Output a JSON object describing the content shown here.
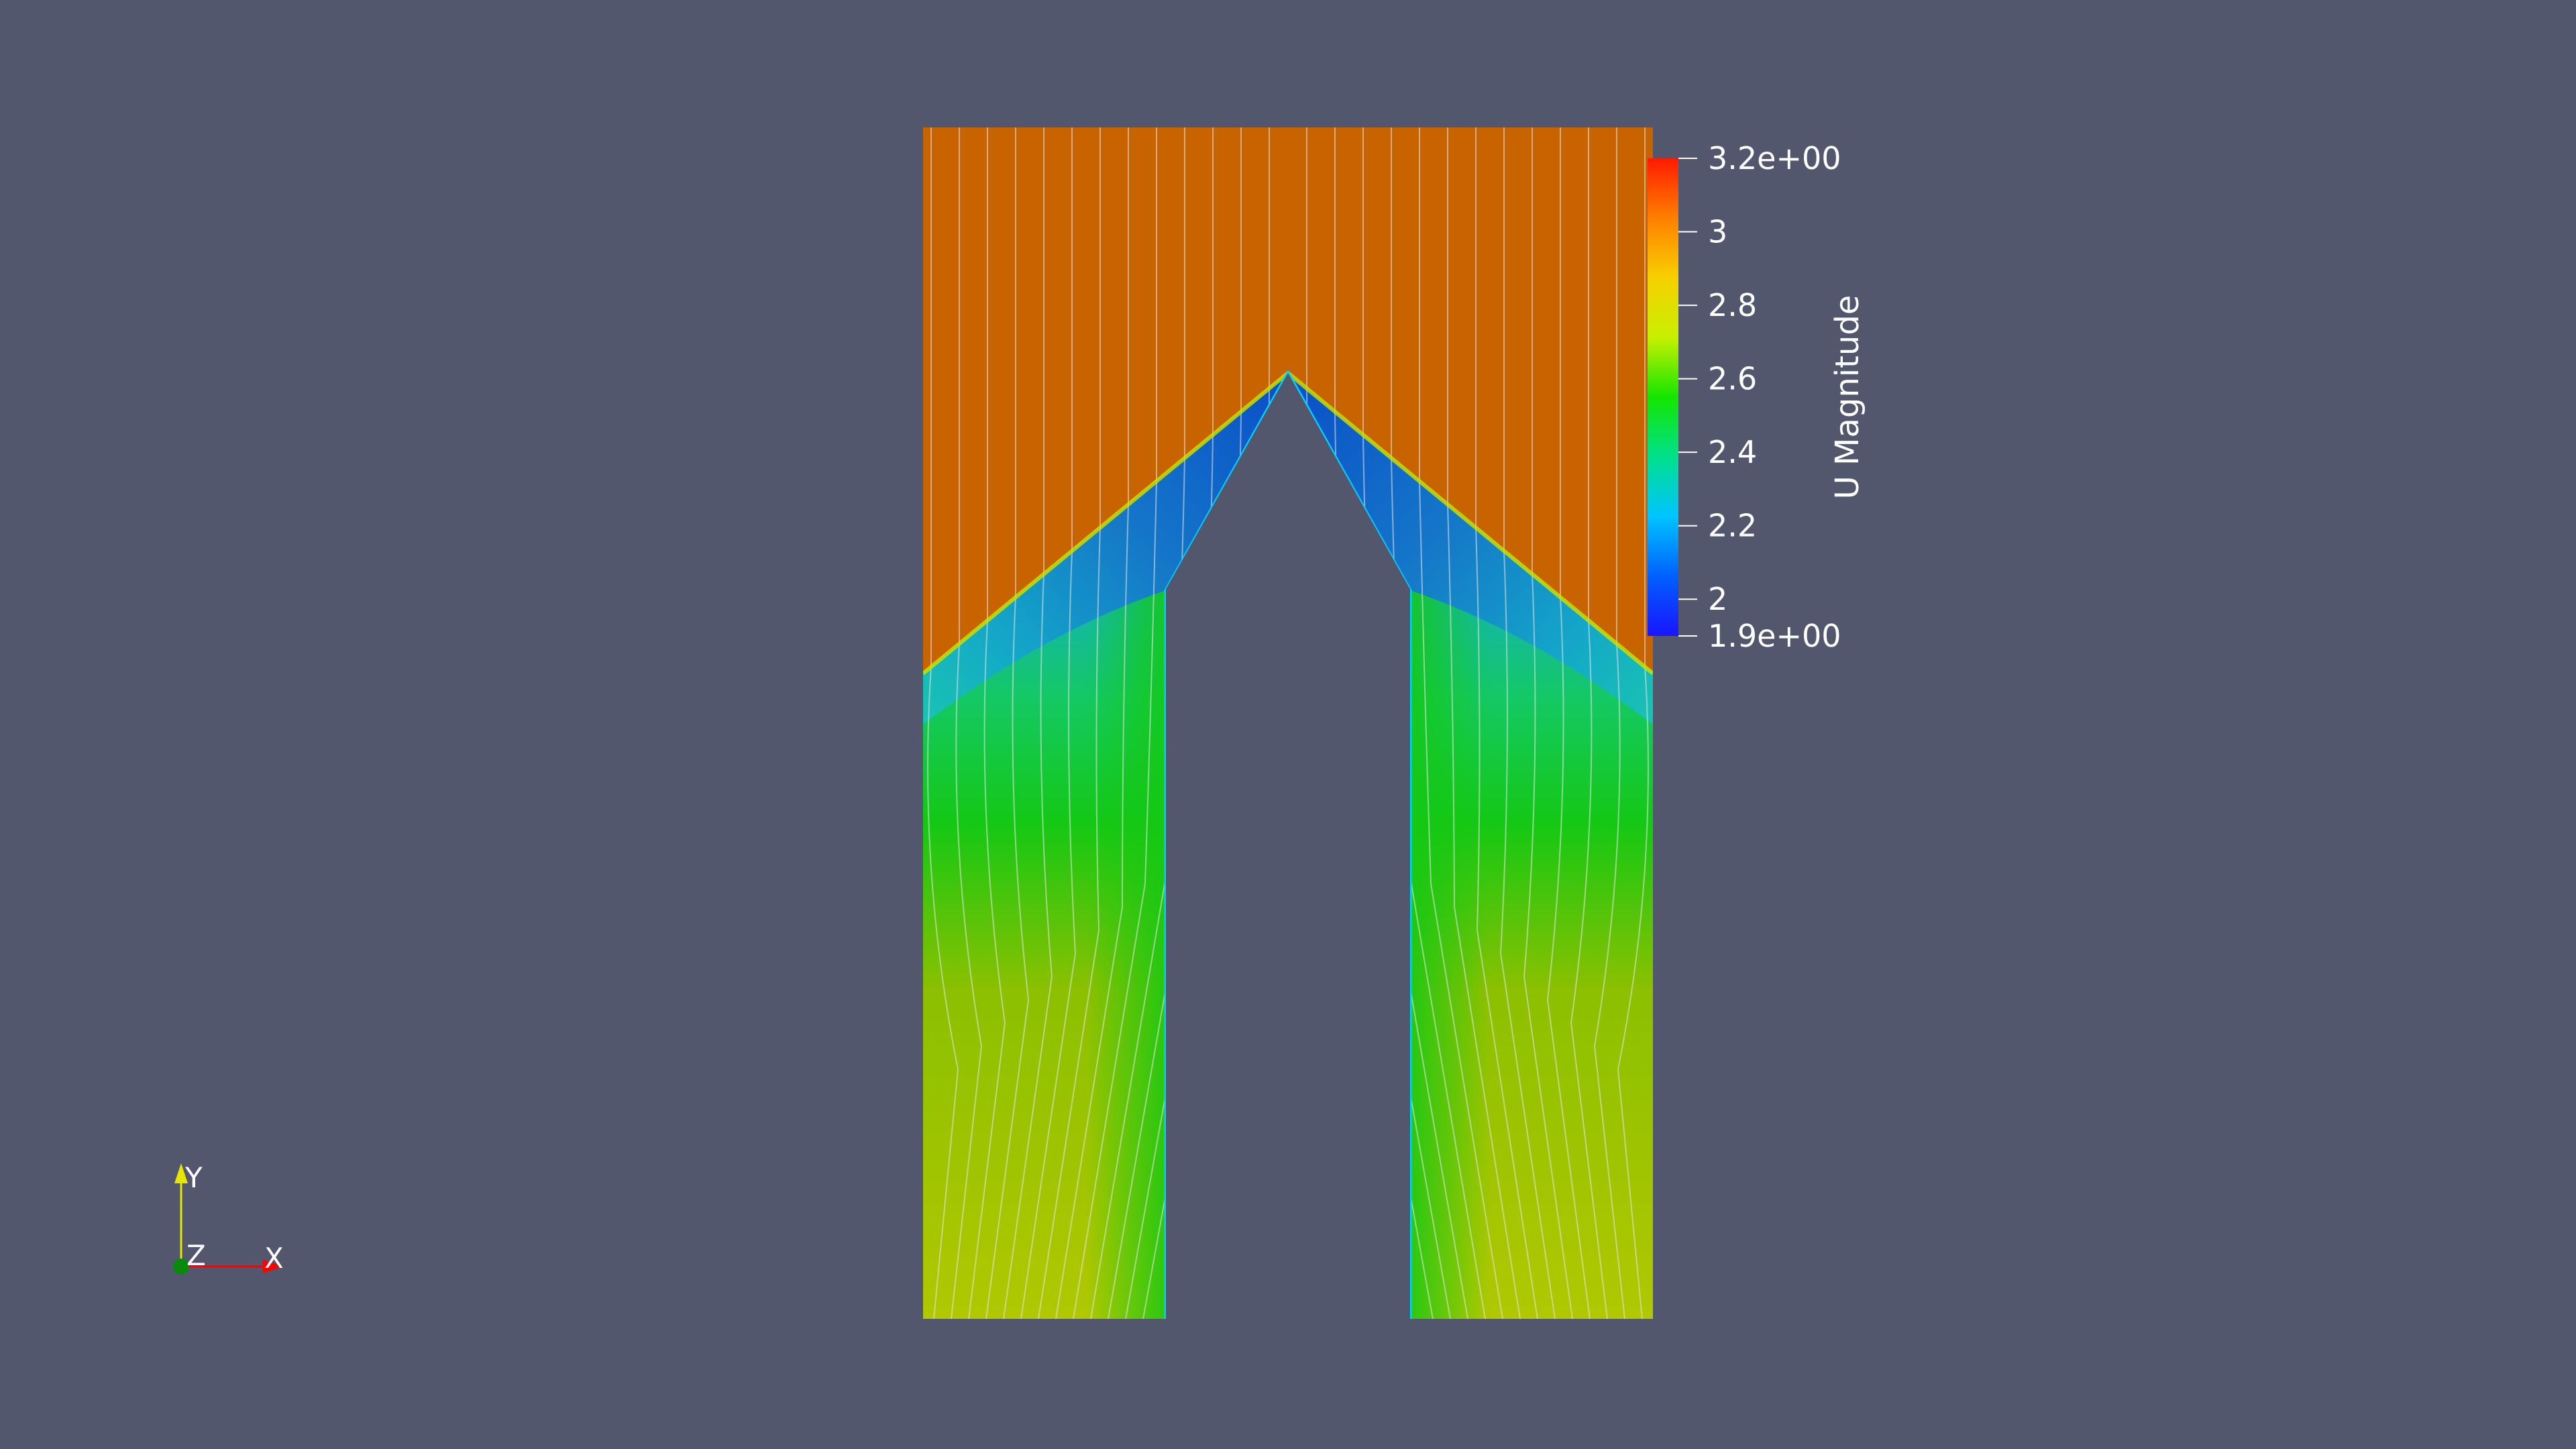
{
  "scene": {
    "background": "#52576e"
  },
  "colorbar": {
    "title": "U Magnitude",
    "range": [
      1.9,
      3.2
    ],
    "colors": [
      "#ff1a00",
      "#ff7f00",
      "#f7d000",
      "#c8f000",
      "#14e600",
      "#00e08c",
      "#00c4ff",
      "#0060ff",
      "#1a14ff"
    ],
    "ticks": [
      {
        "value": 3.2,
        "label": "3.2e+00"
      },
      {
        "value": 3.0,
        "label": "3"
      },
      {
        "value": 2.8,
        "label": "2.8"
      },
      {
        "value": 2.6,
        "label": "2.6"
      },
      {
        "value": 2.4,
        "label": "2.4"
      },
      {
        "value": 2.2,
        "label": "2.2"
      },
      {
        "value": 2.0,
        "label": "2"
      },
      {
        "value": 1.9,
        "label": "1.9e+00"
      }
    ]
  },
  "field_colors": {
    "freestream": "#c86400",
    "shock_region": "#0a5fc8",
    "expansion_region": "#14c414",
    "downstream": "#aac400",
    "edge": "#00d2ff",
    "streamline": "#e6e6e6"
  },
  "axes": {
    "x_label": "X",
    "y_label": "Y",
    "z_label": "Z",
    "x_color": "#ff0000",
    "y_color": "#e6e600",
    "z_color": "#0a8a0a"
  }
}
